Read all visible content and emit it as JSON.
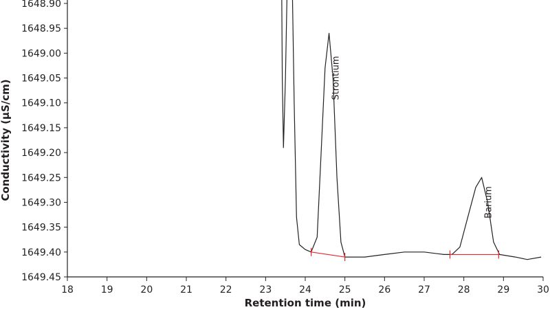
{
  "chart_data": {
    "type": "line",
    "title": "",
    "xlabel": "Retention time (min)",
    "ylabel": "Conductivity (µS/cm)",
    "xlim": [
      18,
      30
    ],
    "ylim": [
      1648.9,
      1649.45
    ],
    "y_inverted": true,
    "grid": false,
    "x_ticks": [
      "18",
      "19",
      "20",
      "21",
      "22",
      "23",
      "24",
      "25",
      "26",
      "27",
      "28",
      "29",
      "30"
    ],
    "y_ticks": [
      "1648.90",
      "1648.95",
      "1649.00",
      "1649.05",
      "1649.10",
      "1649.15",
      "1649.20",
      "1649.25",
      "1649.30",
      "1649.35",
      "1649.40",
      "1649.45"
    ],
    "colors": {
      "trace": "#231f20",
      "baseline": "#e8262a",
      "axis": "#231f20"
    },
    "series": [
      {
        "points": [
          [
            23.4,
            1648.8
          ],
          [
            23.42,
            1649.05
          ],
          [
            23.45,
            1649.19
          ],
          [
            23.5,
            1649.05
          ],
          [
            23.56,
            1648.8
          ],
          [
            23.66,
            1648.8
          ],
          [
            23.72,
            1649.1
          ],
          [
            23.78,
            1649.33
          ],
          [
            23.85,
            1649.385
          ],
          [
            24.0,
            1649.395
          ],
          [
            24.15,
            1649.4
          ],
          [
            24.3,
            1649.37
          ],
          [
            24.4,
            1649.2
          ],
          [
            24.5,
            1649.03
          ],
          [
            24.6,
            1648.96
          ],
          [
            24.7,
            1649.05
          ],
          [
            24.8,
            1649.25
          ],
          [
            24.9,
            1649.38
          ],
          [
            25.0,
            1649.41
          ],
          [
            25.5,
            1649.41
          ],
          [
            26.0,
            1649.405
          ],
          [
            26.5,
            1649.4
          ],
          [
            27.0,
            1649.4
          ],
          [
            27.5,
            1649.405
          ],
          [
            27.7,
            1649.405
          ],
          [
            27.9,
            1649.39
          ],
          [
            28.1,
            1649.33
          ],
          [
            28.3,
            1649.27
          ],
          [
            28.45,
            1649.25
          ],
          [
            28.6,
            1649.3
          ],
          [
            28.75,
            1649.38
          ],
          [
            28.9,
            1649.405
          ],
          [
            29.3,
            1649.41
          ],
          [
            29.6,
            1649.415
          ],
          [
            29.95,
            1649.41
          ]
        ]
      }
    ],
    "peak_baselines": [
      {
        "start": [
          24.15,
          1649.4
        ],
        "end": [
          25.0,
          1649.41
        ]
      },
      {
        "start": [
          27.65,
          1649.405
        ],
        "end": [
          28.88,
          1649.405
        ]
      }
    ],
    "annotations": [
      {
        "text": "Strontium",
        "x": 24.75,
        "y": 1649.05
      },
      {
        "text": "Barium",
        "x": 28.6,
        "y": 1649.3
      }
    ]
  }
}
